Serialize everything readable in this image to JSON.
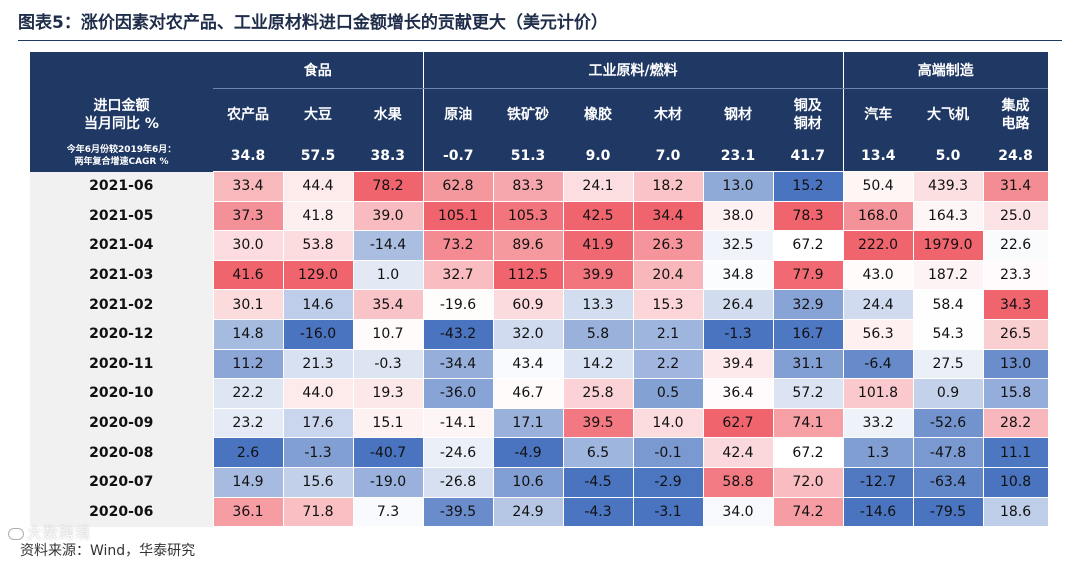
{
  "figure": {
    "label": "图表5：",
    "title": "涨价因素对农产品、工业原材料进口金额增长的贡献更大（美元计价）",
    "source": "资料来源：Wind，华泰研究",
    "watermark": "大数跨境"
  },
  "header": {
    "row_label": [
      "进口金额",
      "当月同比 %"
    ],
    "cagr_label": [
      "今年6月份较2019年6月：",
      "两年复合增速CAGR %"
    ],
    "groups": [
      {
        "name": "食品",
        "span": 3
      },
      {
        "name": "工业原料/燃料",
        "span": 6
      },
      {
        "name": "高端制造",
        "span": 3
      }
    ]
  },
  "chart_data": {
    "type": "table",
    "columns": [
      [
        "农产品"
      ],
      [
        "大豆"
      ],
      [
        "水果"
      ],
      [
        "原油"
      ],
      [
        "铁矿砂"
      ],
      [
        "橡胶"
      ],
      [
        "木材"
      ],
      [
        "钢材"
      ],
      [
        "铜及",
        "铜材"
      ],
      [
        "汽车"
      ],
      [
        "大飞机"
      ],
      [
        "集成",
        "电路"
      ]
    ],
    "cagr": [
      "34.8",
      "57.5",
      "38.3",
      "-0.7",
      "51.3",
      "9.0",
      "7.0",
      "23.1",
      "41.7",
      "13.4",
      "5.0",
      "24.8"
    ],
    "rows": [
      {
        "date": "2021-06",
        "values": [
          "33.4",
          "44.4",
          "78.2",
          "62.8",
          "83.3",
          "24.1",
          "18.2",
          "13.0",
          "15.2",
          "50.4",
          "439.3",
          "31.4"
        ]
      },
      {
        "date": "2021-05",
        "values": [
          "37.3",
          "41.8",
          "39.0",
          "105.1",
          "105.3",
          "42.5",
          "34.4",
          "38.0",
          "78.3",
          "168.0",
          "164.3",
          "25.0"
        ]
      },
      {
        "date": "2021-04",
        "values": [
          "30.0",
          "53.8",
          "-14.4",
          "73.2",
          "89.6",
          "41.9",
          "26.3",
          "32.5",
          "67.2",
          "222.0",
          "1979.0",
          "22.6"
        ]
      },
      {
        "date": "2021-03",
        "values": [
          "41.6",
          "129.0",
          "1.0",
          "32.7",
          "112.5",
          "39.9",
          "20.4",
          "34.8",
          "77.9",
          "43.0",
          "187.2",
          "23.3"
        ]
      },
      {
        "date": "2021-02",
        "values": [
          "30.1",
          "14.6",
          "35.4",
          "-19.6",
          "60.9",
          "13.3",
          "15.3",
          "26.4",
          "32.9",
          "24.4",
          "58.4",
          "34.3"
        ]
      },
      {
        "date": "2020-12",
        "values": [
          "14.8",
          "-16.0",
          "10.7",
          "-43.2",
          "32.0",
          "5.8",
          "2.1",
          "-1.3",
          "16.7",
          "56.3",
          "54.3",
          "26.5"
        ]
      },
      {
        "date": "2020-11",
        "values": [
          "11.2",
          "21.3",
          "-0.3",
          "-34.4",
          "43.4",
          "14.2",
          "2.2",
          "39.4",
          "31.1",
          "-6.4",
          "27.5",
          "13.0"
        ]
      },
      {
        "date": "2020-10",
        "values": [
          "22.2",
          "44.0",
          "19.3",
          "-36.0",
          "46.7",
          "25.8",
          "0.5",
          "36.4",
          "57.2",
          "101.8",
          "0.9",
          "15.8"
        ]
      },
      {
        "date": "2020-09",
        "values": [
          "23.2",
          "17.6",
          "15.1",
          "-14.1",
          "17.1",
          "39.5",
          "14.0",
          "62.7",
          "74.1",
          "33.2",
          "-52.6",
          "28.2"
        ]
      },
      {
        "date": "2020-08",
        "values": [
          "2.6",
          "-1.3",
          "-40.7",
          "-24.6",
          "-4.9",
          "6.5",
          "-0.1",
          "42.4",
          "67.2",
          "1.3",
          "-47.8",
          "11.1"
        ]
      },
      {
        "date": "2020-07",
        "values": [
          "14.9",
          "15.6",
          "-19.0",
          "-26.8",
          "10.6",
          "-4.5",
          "-2.9",
          "58.8",
          "72.0",
          "-12.7",
          "-63.4",
          "10.8"
        ]
      },
      {
        "date": "2020-06",
        "values": [
          "36.1",
          "71.8",
          "7.3",
          "-39.5",
          "24.9",
          "-4.3",
          "-3.1",
          "34.0",
          "74.2",
          "-14.6",
          "-79.5",
          "18.6"
        ]
      }
    ],
    "color_scale": {
      "low": "#4a74c0",
      "mid": "#ffffff",
      "high": "#f0646e",
      "scope": "per-column"
    }
  }
}
